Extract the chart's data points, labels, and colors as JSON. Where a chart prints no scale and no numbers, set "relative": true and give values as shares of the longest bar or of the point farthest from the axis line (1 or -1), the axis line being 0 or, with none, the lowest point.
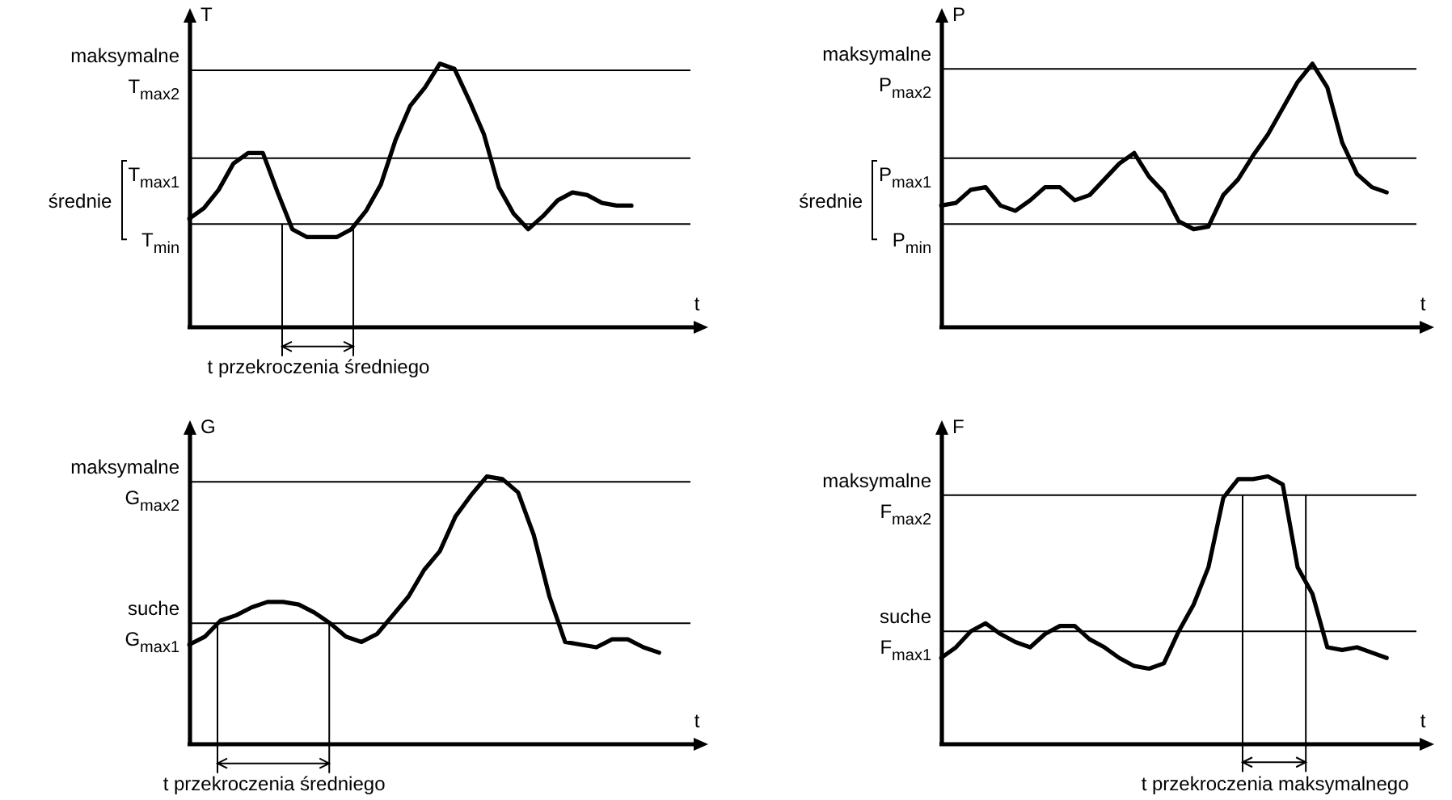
{
  "chart_data": [
    {
      "type": "line",
      "relative": true,
      "marker": "none",
      "xlabel": "t",
      "ylabel": "T",
      "categories": [
        null,
        null,
        null,
        null,
        null,
        null,
        null,
        null,
        null,
        null,
        null,
        null,
        null,
        null,
        null,
        null,
        null,
        null,
        null,
        null,
        null,
        null,
        null,
        null,
        null,
        null,
        null,
        null,
        null,
        null,
        null,
        null,
        null,
        null,
        null
      ],
      "series": [
        {
          "color": "#000000",
          "values": [
            0.41,
            0.45,
            0.52,
            0.62,
            0.66,
            0.66,
            0.51,
            0.37,
            0.34,
            0.34,
            0.34,
            0.37,
            0.44,
            0.54,
            0.71,
            0.84,
            0.91,
            1.0,
            0.98,
            0.86,
            0.73,
            0.53,
            0.43,
            0.37,
            0.42,
            0.48,
            0.51,
            0.5,
            0.47,
            0.46,
            0.46,
            null,
            null,
            null,
            null
          ]
        }
      ],
      "ref_lines": [
        {
          "axis": "y",
          "value": 0.975,
          "label": "T$_{max2}$"
        },
        {
          "axis": "y",
          "value": 0.64,
          "label": "T$_{max1}$"
        },
        {
          "axis": "y",
          "value": 0.39,
          "label": "T$_{min}$"
        }
      ],
      "annotations": [
        "maksymalne",
        "średnie",
        "t przekroczenia średniego"
      ]
    },
    {
      "type": "line",
      "relative": true,
      "marker": "none",
      "xlabel": "t",
      "ylabel": "P",
      "categories": [
        null,
        null,
        null,
        null,
        null,
        null,
        null,
        null,
        null,
        null,
        null,
        null,
        null,
        null,
        null,
        null,
        null,
        null,
        null,
        null,
        null,
        null,
        null,
        null,
        null,
        null,
        null,
        null,
        null,
        null,
        null,
        null,
        null
      ],
      "series": [
        {
          "color": "#000000",
          "values": [
            0.46,
            0.47,
            0.52,
            0.53,
            0.46,
            0.44,
            0.48,
            0.53,
            0.53,
            0.48,
            0.5,
            0.56,
            0.62,
            0.66,
            0.57,
            0.51,
            0.4,
            0.37,
            0.38,
            0.5,
            0.56,
            0.65,
            0.73,
            0.83,
            0.93,
            1.0,
            0.91,
            0.7,
            0.58,
            0.53,
            0.51,
            null,
            null
          ]
        }
      ],
      "ref_lines": [
        {
          "axis": "y",
          "value": 0.98,
          "label": "P$_{max2}$"
        },
        {
          "axis": "y",
          "value": 0.64,
          "label": "P$_{max1}$"
        },
        {
          "axis": "y",
          "value": 0.39,
          "label": "P$_{min}$"
        }
      ],
      "annotations": [
        "maksymalne",
        "średnie"
      ]
    },
    {
      "type": "line",
      "relative": true,
      "marker": "none",
      "xlabel": "t",
      "ylabel": "G",
      "categories": [
        null,
        null,
        null,
        null,
        null,
        null,
        null,
        null,
        null,
        null,
        null,
        null,
        null,
        null,
        null,
        null,
        null,
        null,
        null,
        null,
        null,
        null,
        null,
        null,
        null,
        null,
        null,
        null,
        null,
        null,
        null,
        null,
        null
      ],
      "series": [
        {
          "color": "#000000",
          "values": [
            0.37,
            0.4,
            0.46,
            0.48,
            0.51,
            0.53,
            0.53,
            0.52,
            0.49,
            0.45,
            0.4,
            0.38,
            0.41,
            0.48,
            0.55,
            0.65,
            0.72,
            0.85,
            0.93,
            1.0,
            0.99,
            0.94,
            0.78,
            0.55,
            0.38,
            0.37,
            0.36,
            0.39,
            0.39,
            0.36,
            0.34,
            null,
            null
          ]
        }
      ],
      "ref_lines": [
        {
          "axis": "y",
          "value": 0.98,
          "label": "G$_{max2}$"
        },
        {
          "axis": "y",
          "value": 0.45,
          "label": "G$_{max1}$"
        }
      ],
      "annotations": [
        "maksymalne",
        "suche",
        "t przekroczenia średniego"
      ]
    },
    {
      "type": "line",
      "relative": true,
      "marker": "none",
      "xlabel": "t",
      "ylabel": "F",
      "categories": [
        null,
        null,
        null,
        null,
        null,
        null,
        null,
        null,
        null,
        null,
        null,
        null,
        null,
        null,
        null,
        null,
        null,
        null,
        null,
        null,
        null,
        null,
        null,
        null,
        null,
        null,
        null,
        null,
        null,
        null,
        null,
        null,
        null
      ],
      "series": [
        {
          "color": "#000000",
          "values": [
            0.32,
            0.36,
            0.42,
            0.45,
            0.41,
            0.38,
            0.36,
            0.41,
            0.44,
            0.44,
            0.39,
            0.36,
            0.32,
            0.29,
            0.28,
            0.3,
            0.42,
            0.52,
            0.66,
            0.92,
            0.99,
            0.99,
            1.0,
            0.97,
            0.66,
            0.56,
            0.36,
            0.35,
            0.36,
            0.34,
            0.32,
            null,
            null
          ]
        }
      ],
      "ref_lines": [
        {
          "axis": "y",
          "value": 0.93,
          "label": "F$_{max2}$"
        },
        {
          "axis": "y",
          "value": 0.42,
          "label": "F$_{max1}$"
        }
      ],
      "annotations": [
        "maksymalne",
        "suche",
        "t przekroczenia maksymalnego"
      ]
    }
  ]
}
